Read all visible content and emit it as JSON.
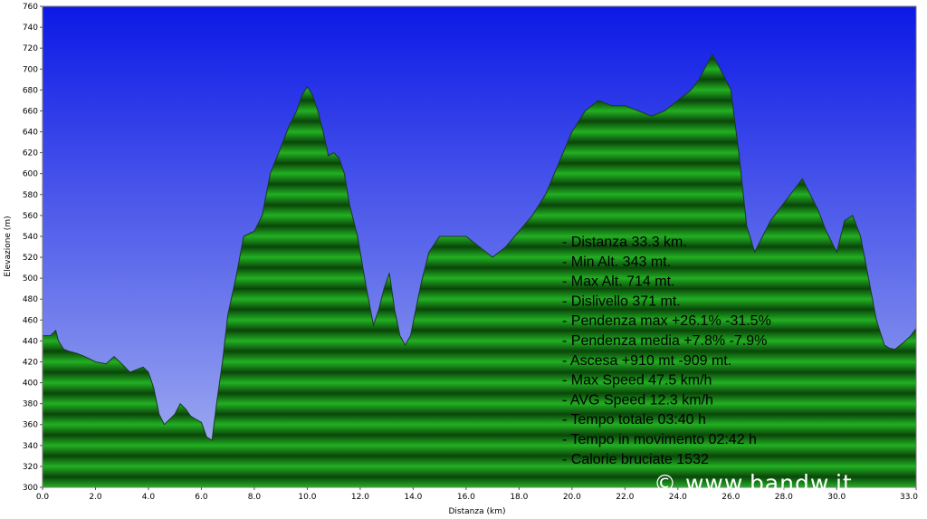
{
  "chart_data": {
    "type": "area",
    "title": "",
    "xlabel": "Distanza  (km)",
    "ylabel": "Elevazione (m)",
    "xlim": [
      0.0,
      33.0
    ],
    "ylim": [
      300,
      760
    ],
    "x_ticks": [
      "0.0",
      "2.0",
      "4.0",
      "6.0",
      "8.0",
      "10.0",
      "12.0",
      "14.0",
      "16.0",
      "18.0",
      "20.0",
      "22.0",
      "24.0",
      "26.0",
      "28.0",
      "30.0",
      "33.0"
    ],
    "x_tick_values": [
      0,
      2,
      4,
      6,
      8,
      10,
      12,
      14,
      16,
      18,
      20,
      22,
      24,
      26,
      28,
      30,
      33
    ],
    "y_ticks": [
      300,
      320,
      340,
      360,
      380,
      400,
      420,
      440,
      460,
      480,
      500,
      520,
      540,
      560,
      580,
      600,
      620,
      640,
      660,
      680,
      700,
      720,
      740,
      760
    ],
    "grid": false,
    "legend": "none",
    "colors": {
      "sky_top": "#0c19e6",
      "sky_bottom": "#a9b5f0",
      "fill_light": "#22b022",
      "fill_dark": "#0a460a",
      "line": "#1a3a1a"
    },
    "series": [
      {
        "x": [
          0.0,
          0.3,
          0.5,
          0.6,
          0.8,
          1.0,
          1.3,
          1.6,
          2.0,
          2.4,
          2.7,
          3.0,
          3.3,
          3.5,
          3.8,
          4.0,
          4.2,
          4.4,
          4.6,
          4.8,
          5.0,
          5.2,
          5.4,
          5.6,
          5.8,
          6.0,
          6.2,
          6.4,
          6.6,
          6.8,
          7.0,
          7.3,
          7.6,
          8.0,
          8.3,
          8.6,
          9.0,
          9.3,
          9.6,
          9.8,
          10.0,
          10.2,
          10.4,
          10.6,
          10.8,
          11.0,
          11.2,
          11.4,
          11.6,
          11.9,
          12.2,
          12.5,
          12.7,
          12.9,
          13.1,
          13.3,
          13.5,
          13.7,
          13.9,
          14.1,
          14.3,
          14.6,
          15.0,
          15.5,
          16.0,
          16.5,
          17.0,
          17.5,
          18.0,
          18.5,
          19.0,
          19.5,
          20.0,
          20.5,
          21.0,
          21.5,
          22.0,
          22.5,
          23.0,
          23.5,
          24.0,
          24.5,
          24.8,
          25.0,
          25.3,
          25.6,
          26.0,
          26.3,
          26.6,
          26.9,
          27.2,
          27.5,
          27.8,
          28.1,
          28.4,
          28.7,
          29.0,
          29.3,
          29.6,
          30.0,
          30.3,
          30.6,
          30.9,
          31.2,
          31.5,
          31.8,
          32.0,
          32.2,
          32.5,
          32.8,
          33.0
        ],
        "y": [
          445,
          445,
          450,
          440,
          432,
          430,
          428,
          425,
          420,
          418,
          425,
          418,
          410,
          412,
          415,
          410,
          395,
          370,
          360,
          365,
          370,
          380,
          375,
          368,
          365,
          362,
          348,
          345,
          385,
          420,
          465,
          500,
          540,
          545,
          560,
          600,
          625,
          645,
          660,
          675,
          683,
          675,
          660,
          640,
          617,
          620,
          615,
          600,
          570,
          540,
          495,
          455,
          470,
          490,
          505,
          470,
          445,
          436,
          445,
          470,
          495,
          525,
          540,
          540,
          540,
          530,
          520,
          530,
          545,
          560,
          580,
          610,
          640,
          660,
          670,
          665,
          665,
          660,
          655,
          660,
          670,
          680,
          690,
          700,
          714,
          700,
          680,
          620,
          550,
          525,
          540,
          555,
          565,
          575,
          585,
          595,
          580,
          565,
          545,
          525,
          555,
          560,
          540,
          500,
          460,
          436,
          433,
          432,
          438,
          445,
          452
        ]
      }
    ],
    "stats": [
      "- Distanza 33.3 km.",
      "- Min Alt. 343 mt.",
      "- Max Alt. 714 mt.",
      "- Dislivello 371 mt.",
      "- Pendenza max +26.1% -31.5%",
      "- Pendenza media +7.8% -7.9%",
      "- Ascesa +910 mt -909 mt.",
      "- Max Speed 47.5 km/h",
      "- AVG Speed 12.3 km/h",
      "- Tempo totale 03:40 h",
      "- Tempo in movimento 02:42 h",
      "- Calorie bruciate 1532"
    ],
    "watermark": "© www.bandw.it"
  }
}
